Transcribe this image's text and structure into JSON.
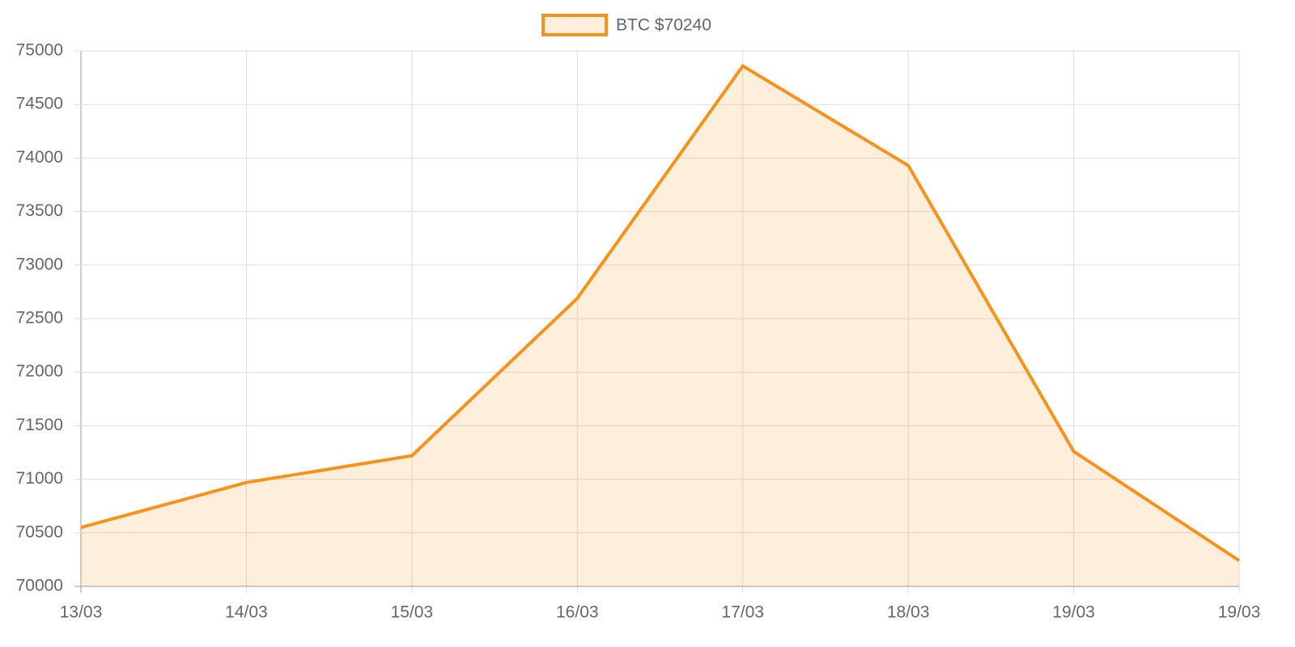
{
  "chart_data": {
    "type": "line",
    "categories": [
      "13/03",
      "14/03",
      "15/03",
      "16/03",
      "17/03",
      "18/03",
      "19/03",
      "19/03"
    ],
    "series": [
      {
        "name": "BTC $70240",
        "color": "#f7931a",
        "values": [
          70550,
          70970,
          71220,
          72690,
          74860,
          73930,
          71260,
          70240
        ]
      }
    ],
    "ylim": [
      70000,
      75000
    ],
    "yticks": [
      70000,
      70500,
      71000,
      71500,
      72000,
      72500,
      73000,
      73500,
      74000,
      74500,
      75000
    ],
    "grid": true,
    "fill": true,
    "legend": "top"
  }
}
